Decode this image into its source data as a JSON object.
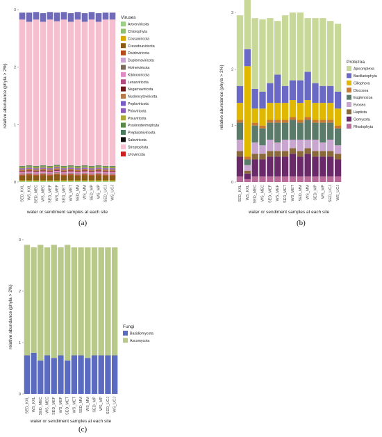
{
  "charts": [
    {
      "panel_label": "(a)",
      "legend_title": "Viruses",
      "chart_data": {
        "type": "bar",
        "stacked": true,
        "title": "",
        "xlabel": "water or sendiment samples at each site",
        "ylabel": "relative abundance (phyla > 2%)",
        "ylim": [
          0,
          3
        ],
        "yticks": [
          "0",
          "1",
          "2",
          "3"
        ],
        "categories": [
          "SED_KXL",
          "WS_KXL",
          "SED_MEC",
          "WS_MEC",
          "SED_MEF",
          "WS_MEF",
          "SED_MET",
          "WS_MET",
          "SED_MM",
          "WS_MM",
          "SED_MP",
          "WS_MP",
          "SED_UCJ",
          "WS_UCJ"
        ],
        "series": [
          {
            "name": "Artverviricota",
            "color": "#9bcf88",
            "values": [
              0.01,
              0.01,
              0.01,
              0.01,
              0.01,
              0.01,
              0.01,
              0.01,
              0.01,
              0.01,
              0.01,
              0.01,
              0.01,
              0.01
            ]
          },
          {
            "name": "Chlorophyta",
            "color": "#8fbf6e",
            "values": [
              0.01,
              0.01,
              0.01,
              0.01,
              0.01,
              0.01,
              0.01,
              0.01,
              0.01,
              0.01,
              0.01,
              0.01,
              0.01,
              0.01
            ]
          },
          {
            "name": "Cossaviricota",
            "color": "#d9a600",
            "values": [
              0.01,
              0.01,
              0.01,
              0.01,
              0.01,
              0.01,
              0.01,
              0.01,
              0.01,
              0.01,
              0.01,
              0.01,
              0.01,
              0.01
            ]
          },
          {
            "name": "Cressdnaviricota",
            "color": "#8b5a16",
            "values": [
              0.08,
              0.09,
              0.08,
              0.09,
              0.08,
              0.1,
              0.08,
              0.09,
              0.08,
              0.09,
              0.08,
              0.09,
              0.08,
              0.08
            ]
          },
          {
            "name": "Dividoviricota",
            "color": "#b54a1a",
            "values": [
              0.02,
              0.02,
              0.02,
              0.02,
              0.02,
              0.02,
              0.02,
              0.02,
              0.02,
              0.02,
              0.02,
              0.02,
              0.02,
              0.02
            ]
          },
          {
            "name": "Duplornaviricota",
            "color": "#c9a3d4",
            "values": [
              0.01,
              0.01,
              0.01,
              0.01,
              0.01,
              0.01,
              0.01,
              0.01,
              0.01,
              0.01,
              0.01,
              0.01,
              0.01,
              0.01
            ]
          },
          {
            "name": "Hofneiviricota",
            "color": "#7a6a58",
            "values": [
              0.01,
              0.01,
              0.01,
              0.01,
              0.01,
              0.01,
              0.01,
              0.01,
              0.01,
              0.01,
              0.01,
              0.01,
              0.01,
              0.01
            ]
          },
          {
            "name": "Kitrinoviricota",
            "color": "#e089c4",
            "values": [
              0.02,
              0.02,
              0.02,
              0.02,
              0.02,
              0.02,
              0.02,
              0.02,
              0.02,
              0.02,
              0.02,
              0.02,
              0.02,
              0.02
            ]
          },
          {
            "name": "Lenarviricota",
            "color": "#b54a82",
            "values": [
              0.01,
              0.01,
              0.01,
              0.01,
              0.01,
              0.01,
              0.01,
              0.01,
              0.01,
              0.01,
              0.01,
              0.01,
              0.01,
              0.01
            ]
          },
          {
            "name": "Negarnaviricota",
            "color": "#6e1a1a",
            "values": [
              0.01,
              0.01,
              0.01,
              0.01,
              0.01,
              0.01,
              0.01,
              0.01,
              0.01,
              0.01,
              0.01,
              0.01,
              0.01,
              0.01
            ]
          },
          {
            "name": "Nucleocytoviricota",
            "color": "#b87a48",
            "values": [
              0.03,
              0.03,
              0.03,
              0.03,
              0.03,
              0.03,
              0.03,
              0.03,
              0.03,
              0.03,
              0.03,
              0.03,
              0.03,
              0.03
            ]
          },
          {
            "name": "Peploviricota",
            "color": "#7a5cc6",
            "values": [
              0.01,
              0.01,
              0.01,
              0.01,
              0.01,
              0.01,
              0.01,
              0.01,
              0.01,
              0.01,
              0.01,
              0.01,
              0.01,
              0.01
            ]
          },
          {
            "name": "Phixviricota",
            "color": "#8a5ab8",
            "values": [
              0.01,
              0.01,
              0.01,
              0.01,
              0.01,
              0.01,
              0.01,
              0.01,
              0.01,
              0.01,
              0.01,
              0.01,
              0.01,
              0.01
            ]
          },
          {
            "name": "Pisuviricota",
            "color": "#a9a838",
            "values": [
              0.02,
              0.02,
              0.02,
              0.02,
              0.02,
              0.02,
              0.02,
              0.02,
              0.02,
              0.02,
              0.02,
              0.02,
              0.02,
              0.02
            ]
          },
          {
            "name": "Prasinodermophyta",
            "color": "#5a8a4a",
            "values": [
              0.01,
              0.01,
              0.01,
              0.01,
              0.01,
              0.01,
              0.01,
              0.01,
              0.01,
              0.01,
              0.01,
              0.01,
              0.01,
              0.01
            ]
          },
          {
            "name": "Preplasmiviricota",
            "color": "#4a7a5c",
            "values": [
              0.01,
              0.01,
              0.01,
              0.01,
              0.01,
              0.01,
              0.01,
              0.01,
              0.01,
              0.01,
              0.01,
              0.01,
              0.01,
              0.01
            ]
          },
          {
            "name": "Saleviricota",
            "color": "#111111",
            "values": [
              0.0,
              0.0,
              0.0,
              0.0,
              0.0,
              0.0,
              0.0,
              0.0,
              0.0,
              0.0,
              0.0,
              0.0,
              0.0,
              0.0
            ]
          },
          {
            "name": "Streptophyta",
            "color": "#f6bfd0",
            "values": [
              2.55,
              2.5,
              2.55,
              2.5,
              2.55,
              2.5,
              2.55,
              2.5,
              2.55,
              2.5,
              2.55,
              2.5,
              2.55,
              2.55
            ]
          },
          {
            "name": "Uroviricota",
            "color": "#cc2020",
            "values": [
              0.0,
              0.0,
              0.0,
              0.0,
              0.0,
              0.0,
              0.0,
              0.0,
              0.0,
              0.0,
              0.0,
              0.0,
              0.0,
              0.0
            ]
          },
          {
            "name": "Chlorophyta",
            "color": "#6f6bb8",
            "values": [
              0.12,
              0.16,
              0.13,
              0.15,
              0.13,
              0.15,
              0.13,
              0.15,
              0.13,
              0.15,
              0.13,
              0.15,
              0.12,
              0.12
            ]
          }
        ]
      }
    },
    {
      "panel_label": "(b)",
      "legend_title": "Protozoa",
      "chart_data": {
        "type": "bar",
        "stacked": true,
        "title": "",
        "xlabel": "water or sendiment samples at each site",
        "ylabel": "relative abundance (phyla > 2%)",
        "ylim": [
          0,
          3
        ],
        "yticks": [
          "0",
          "1",
          "2",
          "3"
        ],
        "categories": [
          "SED_KXL",
          "WS_KXL",
          "SED_MEC",
          "WS_MEC",
          "SED_MEF",
          "WS_MEF",
          "SED_MET",
          "WS_MET",
          "SED_MM",
          "WS_MM",
          "SED_MP",
          "WS_MP",
          "SED_UCJ",
          "WS_UCJ"
        ],
        "series": [
          {
            "name": "Rhodophyta",
            "color": "#b86a98",
            "values": [
              0.1,
              0.05,
              0.1,
              0.1,
              0.1,
              0.1,
              0.1,
              0.1,
              0.1,
              0.1,
              0.1,
              0.1,
              0.1,
              0.1
            ]
          },
          {
            "name": "Oomycota",
            "color": "#6a2a6a",
            "values": [
              0.35,
              0.1,
              0.3,
              0.3,
              0.35,
              0.35,
              0.35,
              0.4,
              0.35,
              0.4,
              0.35,
              0.35,
              0.35,
              0.3
            ]
          },
          {
            "name": "Haptista",
            "color": "#8a6a3a",
            "values": [
              0.1,
              0.05,
              0.1,
              0.1,
              0.1,
              0.1,
              0.1,
              0.1,
              0.1,
              0.1,
              0.1,
              0.1,
              0.1,
              0.1
            ]
          },
          {
            "name": "Evosea",
            "color": "#c9a6d0",
            "values": [
              0.2,
              0.1,
              0.2,
              0.15,
              0.2,
              0.15,
              0.2,
              0.15,
              0.2,
              0.15,
              0.2,
              0.15,
              0.2,
              0.15
            ]
          },
          {
            "name": "Euglenozoa",
            "color": "#5a7a6a",
            "values": [
              0.3,
              0.1,
              0.3,
              0.3,
              0.3,
              0.35,
              0.3,
              0.35,
              0.3,
              0.35,
              0.3,
              0.35,
              0.3,
              0.3
            ]
          },
          {
            "name": "Discosea",
            "color": "#c87a30",
            "values": [
              0.05,
              0.05,
              0.05,
              0.05,
              0.05,
              0.05,
              0.05,
              0.05,
              0.05,
              0.05,
              0.05,
              0.05,
              0.05,
              0.05
            ]
          },
          {
            "name": "Ciliophora",
            "color": "#e0b800",
            "values": [
              0.3,
              1.6,
              0.25,
              0.3,
              0.3,
              0.3,
              0.3,
              0.3,
              0.3,
              0.3,
              0.3,
              0.3,
              0.3,
              0.3
            ]
          },
          {
            "name": "Bacillariophyta",
            "color": "#6a6ac6",
            "values": [
              0.3,
              0.3,
              0.35,
              0.3,
              0.35,
              0.5,
              0.3,
              0.35,
              0.4,
              0.5,
              0.35,
              0.3,
              0.3,
              0.3
            ]
          },
          {
            "name": "Apicomplexa",
            "color": "#c8d898",
            "values": [
              1.25,
              0.95,
              1.25,
              1.28,
              1.15,
              0.95,
              1.25,
              1.2,
              1.2,
              0.95,
              1.15,
              1.2,
              1.15,
              1.2
            ]
          }
        ]
      }
    },
    {
      "panel_label": "(c)",
      "legend_title": "Fungi",
      "chart_data": {
        "type": "bar",
        "stacked": true,
        "title": "",
        "xlabel": "water or sendiment samples at each site",
        "ylabel": "relative abundance (phyla > 2%)",
        "ylim": [
          0,
          3
        ],
        "yticks": [
          "0",
          "1",
          "2",
          "3"
        ],
        "categories": [
          "SED_KXL",
          "WS_KXL",
          "SED_MEC",
          "WS_MEC",
          "SED_MEF",
          "WS_MEF",
          "SED_MET",
          "WS_MET",
          "SED_MM",
          "WS_MM",
          "SED_MP",
          "WS_MP",
          "SED_UCJ",
          "WS_UCJ"
        ],
        "series": [
          {
            "name": "Basidiomycota",
            "color": "#5b6bc0",
            "values": [
              0.75,
              0.8,
              0.65,
              0.75,
              0.7,
              0.75,
              0.65,
              0.75,
              0.75,
              0.7,
              0.75,
              0.75,
              0.75,
              0.75
            ]
          },
          {
            "name": "Ascomycota",
            "color": "#b9c98a",
            "values": [
              2.15,
              2.05,
              2.25,
              2.1,
              2.2,
              2.1,
              2.25,
              2.1,
              2.1,
              2.15,
              2.1,
              2.1,
              2.1,
              2.1
            ]
          }
        ]
      }
    }
  ]
}
